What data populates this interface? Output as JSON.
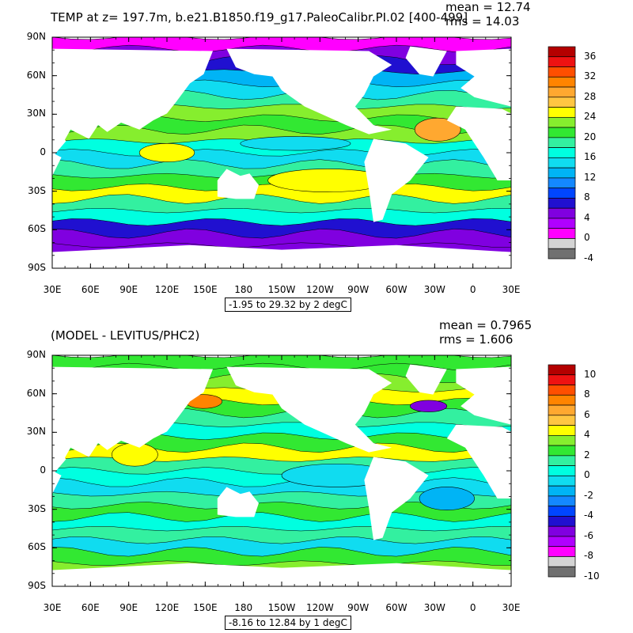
{
  "panels": [
    {
      "title": "TEMP at z= 197.7m, b.e21.B1850.f19_g17.PaleoCalibr.PI.02 [400-499]",
      "mean": "mean = 12.74",
      "rms": "rms = 14.03",
      "range": "-1.95 to 29.32 by 2 degC",
      "colorbar_labels": [
        "36",
        "32",
        "28",
        "24",
        "20",
        "16",
        "12",
        "8",
        "4",
        "0",
        "-4"
      ],
      "colorbar_colors": [
        "#b40000",
        "#ee1212",
        "#ff4f00",
        "#ff8400",
        "#ffa830",
        "#ffc642",
        "#ffff00",
        "#86ee2e",
        "#32e832",
        "#33f0a0",
        "#00ffe0",
        "#10dcf0",
        "#00b4f5",
        "#1488ff",
        "#0046ff",
        "#2010d0",
        "#8000e0",
        "#b000ff",
        "#ff00ff",
        "#d4d4d4",
        "#707070"
      ]
    },
    {
      "title": "(MODEL - LEVITUS/PHC2)",
      "mean": "mean = 0.7965",
      "rms": "rms = 1.606",
      "range": "-8.16 to 12.84 by 1 degC",
      "colorbar_labels": [
        "10",
        "8",
        "6",
        "4",
        "2",
        "0",
        "-2",
        "-4",
        "-6",
        "-8",
        "-10"
      ],
      "colorbar_colors": [
        "#b40000",
        "#ee1212",
        "#ff4f00",
        "#ff8400",
        "#ffa830",
        "#ffc642",
        "#ffff00",
        "#86ee2e",
        "#32e832",
        "#33f0a0",
        "#00ffe0",
        "#10dcf0",
        "#00b4f5",
        "#1488ff",
        "#0046ff",
        "#2010d0",
        "#8000e0",
        "#b000ff",
        "#ff00ff",
        "#d4d4d4",
        "#707070"
      ]
    }
  ],
  "lat_labels": [
    "90N",
    "60N",
    "30N",
    "0",
    "30S",
    "60S",
    "90S"
  ],
  "lon_labels": [
    "30E",
    "60E",
    "90E",
    "120E",
    "150E",
    "180",
    "150W",
    "120W",
    "90W",
    "60W",
    "30W",
    "0",
    "30E"
  ]
}
